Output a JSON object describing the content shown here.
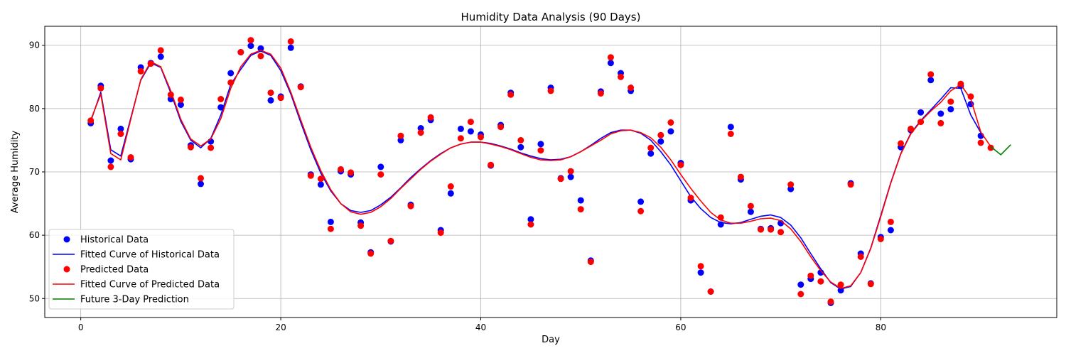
{
  "colors": {
    "historical": "#0000ff",
    "predicted": "#ff0000",
    "future": "#008000",
    "grid": "#b0b0b0",
    "axis": "#000000"
  },
  "chart_data": {
    "type": "scatter",
    "title": "Humidity Data Analysis (90 Days)",
    "xlabel": "Day",
    "ylabel": "Average Humidity",
    "xlim": [
      -3.6,
      97.6
    ],
    "ylim": [
      47.0,
      93.0
    ],
    "xticks": [
      0,
      20,
      40,
      60,
      80
    ],
    "yticks": [
      50,
      60,
      70,
      80,
      90
    ],
    "grid": true,
    "legend_position": "lower-left",
    "legend": [
      {
        "key": "hist_pts",
        "label": "Historical Data",
        "kind": "marker",
        "color": "#0000ff"
      },
      {
        "key": "hist_fit",
        "label": "Fitted Curve of Historical Data",
        "kind": "line",
        "color": "#0000ff"
      },
      {
        "key": "pred_pts",
        "label": "Predicted Data",
        "kind": "marker",
        "color": "#ff0000"
      },
      {
        "key": "pred_fit",
        "label": "Fitted Curve of Predicted Data",
        "kind": "line",
        "color": "#ff0000"
      },
      {
        "key": "future",
        "label": "Future 3-Day Prediction",
        "kind": "line",
        "color": "#008000"
      }
    ],
    "historical_points": {
      "x": [
        1,
        2,
        3,
        4,
        5,
        6,
        7,
        8,
        9,
        10,
        11,
        12,
        13,
        14,
        15,
        16,
        17,
        18,
        19,
        20,
        21,
        22,
        23,
        24,
        25,
        26,
        27,
        28,
        29,
        30,
        31,
        32,
        33,
        34,
        35,
        36,
        37,
        38,
        39,
        40,
        41,
        42,
        43,
        44,
        45,
        46,
        47,
        48,
        49,
        50,
        51,
        52,
        53,
        54,
        55,
        56,
        57,
        58,
        59,
        60,
        61,
        62,
        63,
        64,
        65,
        66,
        67,
        68,
        69,
        70,
        71,
        72,
        73,
        74,
        75,
        76,
        77,
        78,
        79,
        80,
        81,
        82,
        83,
        84,
        85,
        86,
        87,
        88,
        89,
        90
      ],
      "y": [
        77.7,
        83.6,
        71.8,
        76.8,
        72.0,
        86.5,
        87.2,
        88.2,
        81.5,
        80.6,
        74.2,
        68.1,
        74.8,
        80.2,
        85.6,
        88.9,
        89.9,
        89.5,
        81.3,
        81.9,
        89.6,
        83.5,
        69.6,
        68.0,
        62.1,
        70.1,
        69.6,
        62.0,
        57.3,
        70.8,
        59.0,
        75.0,
        64.8,
        76.9,
        78.2,
        60.8,
        66.6,
        76.8,
        76.4,
        75.9,
        71.0,
        77.4,
        82.5,
        73.9,
        62.5,
        74.4,
        83.3,
        69.0,
        69.2,
        65.5,
        56.0,
        82.7,
        87.2,
        85.6,
        82.8,
        65.3,
        72.9,
        74.8,
        76.4,
        71.4,
        65.5,
        54.1,
        51.1,
        61.7,
        77.1,
        68.8,
        63.7,
        61.0,
        61.1,
        61.9,
        67.3,
        52.2,
        53.1,
        54.1,
        49.3,
        51.3,
        68.2,
        57.1,
        52.4,
        59.7,
        60.8,
        73.9,
        76.6,
        79.4,
        84.5,
        79.2,
        79.9,
        83.6,
        80.7,
        75.7
      ]
    },
    "predicted_points": {
      "x": [
        1,
        2,
        3,
        4,
        5,
        6,
        7,
        8,
        9,
        10,
        11,
        12,
        13,
        14,
        15,
        16,
        17,
        18,
        19,
        20,
        21,
        22,
        23,
        24,
        25,
        26,
        27,
        28,
        29,
        30,
        31,
        32,
        33,
        34,
        35,
        36,
        37,
        38,
        39,
        40,
        41,
        42,
        43,
        44,
        45,
        46,
        47,
        48,
        49,
        50,
        51,
        52,
        53,
        54,
        55,
        56,
        57,
        58,
        59,
        60,
        61,
        62,
        63,
        64,
        65,
        66,
        67,
        68,
        69,
        70,
        71,
        72,
        73,
        74,
        75,
        76,
        77,
        78,
        79,
        80,
        81,
        82,
        83,
        84,
        85,
        86,
        87,
        88,
        89,
        90,
        91
      ],
      "y": [
        78.1,
        83.2,
        70.8,
        76.0,
        72.3,
        85.9,
        87.1,
        89.2,
        82.2,
        81.4,
        73.9,
        69.0,
        73.8,
        81.5,
        84.1,
        88.9,
        90.8,
        88.3,
        82.5,
        81.7,
        90.6,
        83.4,
        69.4,
        68.9,
        61.0,
        70.4,
        69.9,
        61.5,
        57.1,
        69.6,
        59.1,
        75.7,
        64.6,
        76.2,
        78.6,
        60.4,
        67.7,
        75.3,
        77.9,
        75.5,
        71.1,
        77.1,
        82.2,
        75.0,
        61.7,
        73.4,
        82.8,
        68.9,
        70.1,
        64.1,
        55.8,
        82.4,
        88.1,
        85.0,
        83.3,
        63.8,
        73.8,
        75.8,
        77.8,
        71.1,
        65.9,
        55.1,
        51.1,
        62.8,
        76.0,
        69.2,
        64.6,
        60.9,
        60.9,
        60.5,
        68.0,
        50.7,
        53.6,
        52.7,
        49.5,
        52.2,
        68.0,
        56.6,
        52.3,
        59.4,
        62.1,
        74.5,
        76.8,
        77.9,
        85.4,
        77.7,
        81.1,
        83.9,
        81.9,
        74.6,
        73.8
      ]
    },
    "historical_fit": {
      "x": [
        1,
        2,
        3,
        4,
        5,
        6,
        7,
        8,
        9,
        10,
        11,
        12,
        13,
        14,
        15,
        16,
        17,
        18,
        19,
        20,
        21,
        22,
        23,
        24,
        25,
        26,
        27,
        28,
        29,
        30,
        31,
        32,
        33,
        34,
        35,
        36,
        37,
        38,
        39,
        40,
        41,
        42,
        43,
        44,
        45,
        46,
        47,
        48,
        49,
        50,
        51,
        52,
        53,
        54,
        55,
        56,
        57,
        58,
        59,
        60,
        61,
        62,
        63,
        64,
        65,
        66,
        67,
        68,
        69,
        70,
        71,
        72,
        73,
        74,
        75,
        76,
        77,
        78,
        79,
        80,
        81,
        82,
        83,
        84,
        85,
        86,
        87,
        88,
        89,
        90
      ],
      "y": [
        78.0,
        82.6,
        73.5,
        72.5,
        78.5,
        84.5,
        87.2,
        86.5,
        82.5,
        78.0,
        75.0,
        73.8,
        75.3,
        79.0,
        83.8,
        86.2,
        88.4,
        89.1,
        88.4,
        86.0,
        82.3,
        77.8,
        73.5,
        69.8,
        67.0,
        65.0,
        63.9,
        63.6,
        63.9,
        64.8,
        66.0,
        67.5,
        69.1,
        70.5,
        71.8,
        72.9,
        73.8,
        74.4,
        74.7,
        74.7,
        74.5,
        74.1,
        73.6,
        73.0,
        72.5,
        72.1,
        71.9,
        72.0,
        72.4,
        73.2,
        74.2,
        75.3,
        76.2,
        76.6,
        76.6,
        76.1,
        75.0,
        73.2,
        71.1,
        68.6,
        66.1,
        64.2,
        62.8,
        62.0,
        61.8,
        62.0,
        62.5,
        63.0,
        63.2,
        62.8,
        61.6,
        59.6,
        57.1,
        54.7,
        52.5,
        51.5,
        51.9,
        54.1,
        58.0,
        63.1,
        68.3,
        72.9,
        76.1,
        78.1,
        79.8,
        81.5,
        83.3,
        83.2,
        79.0,
        76.2
      ]
    },
    "predicted_fit": {
      "x": [
        1,
        2,
        3,
        4,
        5,
        6,
        7,
        8,
        9,
        10,
        11,
        12,
        13,
        14,
        15,
        16,
        17,
        18,
        19,
        20,
        21,
        22,
        23,
        24,
        25,
        26,
        27,
        28,
        29,
        30,
        31,
        32,
        33,
        34,
        35,
        36,
        37,
        38,
        39,
        40,
        41,
        42,
        43,
        44,
        45,
        46,
        47,
        48,
        49,
        50,
        51,
        52,
        53,
        54,
        55,
        56,
        57,
        58,
        59,
        60,
        61,
        62,
        63,
        64,
        65,
        66,
        67,
        68,
        69,
        70,
        71,
        72,
        73,
        74,
        75,
        76,
        77,
        78,
        79,
        80,
        81,
        82,
        83,
        84,
        85,
        86,
        87,
        88,
        89,
        90,
        91
      ],
      "y": [
        78.2,
        82.3,
        72.9,
        71.9,
        78.3,
        84.6,
        87.4,
        86.6,
        82.8,
        78.3,
        75.2,
        74.1,
        75.2,
        78.4,
        83.2,
        86.6,
        88.6,
        89.2,
        88.6,
        86.4,
        82.6,
        78.2,
        73.9,
        70.2,
        67.2,
        65.0,
        63.7,
        63.3,
        63.6,
        64.5,
        65.8,
        67.4,
        68.9,
        70.4,
        71.7,
        72.8,
        73.8,
        74.4,
        74.7,
        74.7,
        74.4,
        74.0,
        73.5,
        72.9,
        72.3,
        71.9,
        71.8,
        71.9,
        72.4,
        73.2,
        74.1,
        75.0,
        76.0,
        76.5,
        76.6,
        76.2,
        75.4,
        73.9,
        71.9,
        69.6,
        67.4,
        65.4,
        63.6,
        62.4,
        61.9,
        61.9,
        62.2,
        62.6,
        62.7,
        62.3,
        61.0,
        59.0,
        56.6,
        54.4,
        52.6,
        51.6,
        52.0,
        54.1,
        57.9,
        62.9,
        68.2,
        72.8,
        76.0,
        78.0,
        79.6,
        81.0,
        82.8,
        83.8,
        81.5,
        76.3,
        74.0
      ]
    },
    "future_prediction": {
      "x": [
        91,
        92,
        93
      ],
      "y": [
        74.0,
        72.7,
        74.3
      ]
    }
  }
}
